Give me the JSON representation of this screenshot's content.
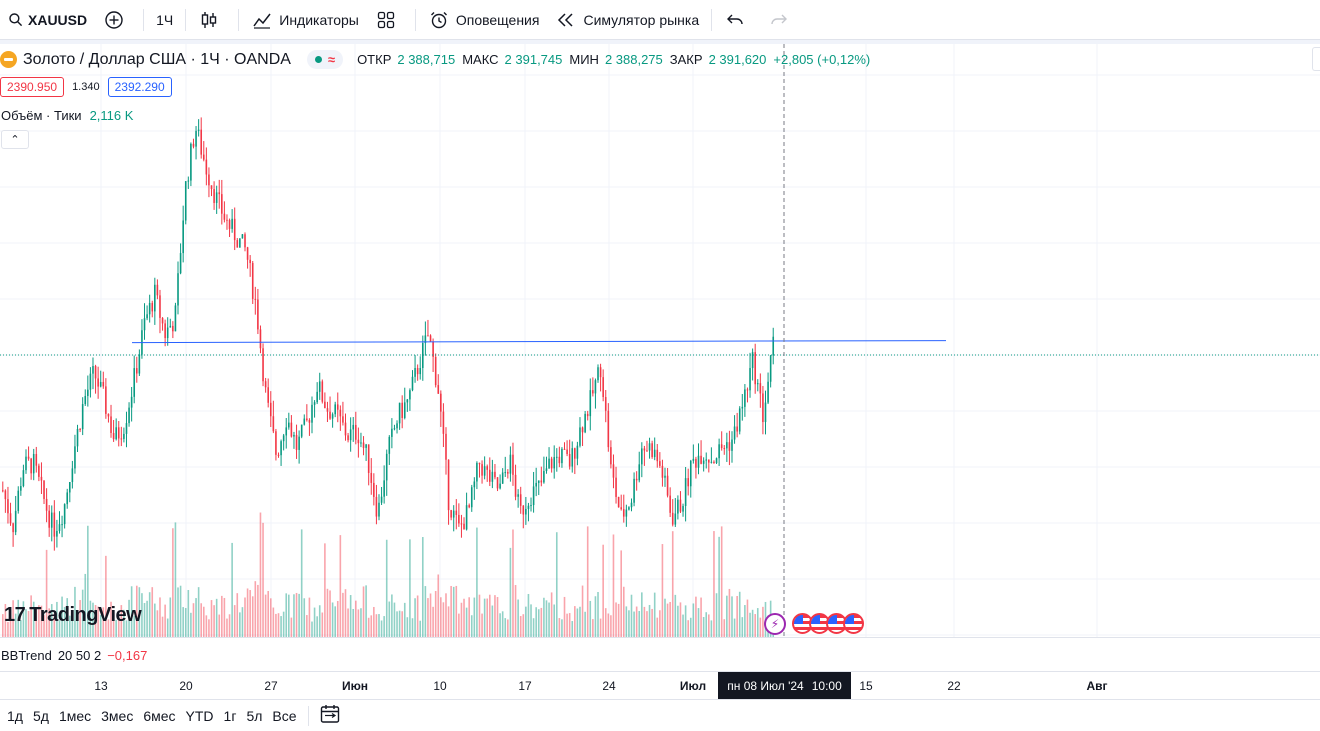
{
  "toolbar": {
    "symbol": "XAUUSD",
    "interval": "1Ч",
    "indicators": "Индикаторы",
    "alerts": "Оповещения",
    "replay": "Симулятор рынка"
  },
  "legend": {
    "title": "Золото / Доллар США · 1Ч · OANDA",
    "wave": "≈",
    "open_label": "ОТКР",
    "open_value": "2 388,715",
    "high_label": "МАКС",
    "high_value": "2 391,745",
    "low_label": "МИН",
    "low_value": "2 388,275",
    "close_label": "ЗАКР",
    "close_value": "2 391,620",
    "change": "+2,805 (+0,12%)"
  },
  "bidask": {
    "bid": "2390.950",
    "spread": "1.340",
    "ask": "2392.290"
  },
  "volume": {
    "label": "Объём · Тики",
    "value": "2,116 K"
  },
  "collapse": "⌃",
  "logo": {
    "mark": "17",
    "text": "TradingView"
  },
  "events": {
    "bolt": "⚡"
  },
  "bbtrend": {
    "label": "BBTrend",
    "params": "20 50 2",
    "value": "−0,167"
  },
  "time_axis": {
    "ticks": [
      {
        "label": "13",
        "bold": false
      },
      {
        "label": "20",
        "bold": false
      },
      {
        "label": "27",
        "bold": false
      },
      {
        "label": "Июн",
        "bold": true
      },
      {
        "label": "10",
        "bold": false
      },
      {
        "label": "17",
        "bold": false
      },
      {
        "label": "24",
        "bold": false
      },
      {
        "label": "Июл",
        "bold": true
      },
      {
        "label": "15",
        "bold": false
      },
      {
        "label": "22",
        "bold": false
      },
      {
        "label": "Авг",
        "bold": true
      }
    ],
    "crosshair_date": "пн 08 Июл '24",
    "crosshair_time": "10:00"
  },
  "ranges": [
    "1д",
    "5д",
    "1мес",
    "3мес",
    "6мес",
    "YTD",
    "1г",
    "5л",
    "Все"
  ],
  "colors": {
    "up": "#089981",
    "down": "#f23645",
    "accent": "#2962ff"
  },
  "chart_data": {
    "type": "candlestick",
    "symbol": "XAUUSD",
    "interval": "1Ч",
    "series": [
      {
        "name": "price",
        "values": [
          2355,
          2346,
          2361,
          2362,
          2353,
          2345,
          2350,
          2365,
          2378,
          2385,
          2378,
          2368,
          2372,
          2384,
          2398,
          2405,
          2395,
          2399,
          2432,
          2448,
          2438,
          2430,
          2424,
          2420,
          2416,
          2402,
          2378,
          2364,
          2374,
          2366,
          2372,
          2382,
          2376,
          2374,
          2369,
          2370,
          2363,
          2349,
          2365,
          2374,
          2378,
          2387,
          2395,
          2380,
          2352,
          2345,
          2350,
          2362,
          2358,
          2355,
          2363,
          2349,
          2354,
          2356,
          2362,
          2364,
          2362,
          2371,
          2378,
          2387,
          2360,
          2348,
          2353,
          2366,
          2366,
          2360,
          2348,
          2352,
          2362,
          2365,
          2363,
          2366,
          2368,
          2377,
          2388,
          2374,
          2392
        ]
      },
      {
        "name": "volume",
        "values": [
          0.6,
          0.5,
          0.5,
          0.7,
          0.5,
          0.6,
          0.6,
          0.7,
          0.9,
          0.6,
          0.5,
          0.5,
          0.6,
          0.7,
          0.8,
          0.7,
          0.6,
          0.7,
          0.9,
          0.8,
          0.6,
          0.6,
          0.6,
          0.7,
          0.8,
          0.8,
          0.7,
          0.6,
          0.6,
          0.7,
          0.6,
          0.5,
          0.7,
          0.6,
          0.7,
          0.6,
          0.7,
          0.6,
          0.6,
          0.5,
          0.6,
          0.6,
          0.8,
          0.9,
          0.8,
          0.7,
          0.6,
          0.6,
          0.6,
          0.6,
          0.6,
          0.7,
          0.6,
          0.6,
          0.6,
          0.6,
          0.6,
          0.7,
          0.6,
          0.7,
          0.8,
          0.7,
          0.6,
          0.6,
          0.6,
          0.6,
          0.7,
          0.6,
          0.6,
          0.6,
          0.6,
          0.6,
          0.7,
          0.7,
          0.8,
          0.7,
          0.7
        ]
      }
    ],
    "horizontal_line": 2393,
    "last_price": 2391.62
  }
}
